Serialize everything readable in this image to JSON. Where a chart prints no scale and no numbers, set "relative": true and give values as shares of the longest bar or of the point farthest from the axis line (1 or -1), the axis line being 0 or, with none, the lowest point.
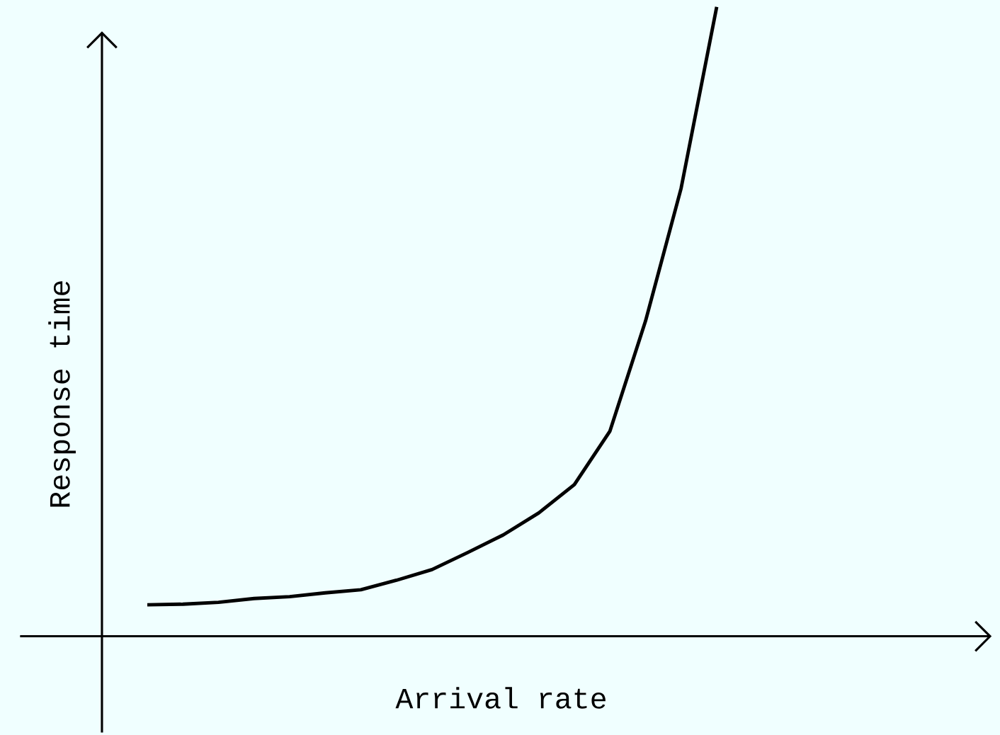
{
  "chart_data": {
    "type": "line",
    "xlabel": "Arrival rate",
    "ylabel": "Response time",
    "relative": true,
    "color": "#000000",
    "categories": [
      null,
      null,
      null,
      null,
      null,
      null,
      null,
      null,
      null,
      null,
      null,
      null,
      null,
      null,
      null,
      null,
      null
    ],
    "values": [
      0.05,
      0.051,
      0.054,
      0.06,
      0.063,
      0.069,
      0.074,
      0.089,
      0.106,
      0.133,
      0.161,
      0.196,
      0.241,
      0.326,
      0.501,
      0.712,
      1
    ]
  }
}
